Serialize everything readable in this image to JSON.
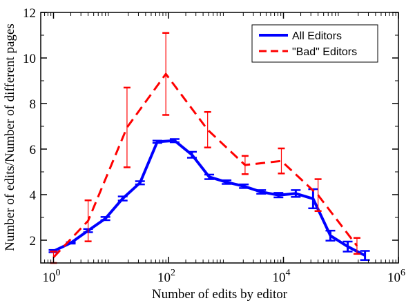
{
  "chart_data": {
    "type": "line",
    "xlabel": "Number of edits by editor",
    "ylabel": "Number of edits/Number of different pages",
    "x_scale": "log",
    "xlim": [
      0.6,
      1000000
    ],
    "ylim": [
      1,
      12
    ],
    "x_ticks": [
      {
        "value": 1,
        "base": "10",
        "exp": "0"
      },
      {
        "value": 100,
        "base": "10",
        "exp": "2"
      },
      {
        "value": 10000,
        "base": "10",
        "exp": "4"
      },
      {
        "value": 1000000,
        "base": "10",
        "exp": "6"
      }
    ],
    "y_ticks": [
      {
        "value": 2,
        "label": "2"
      },
      {
        "value": 4,
        "label": "4"
      },
      {
        "value": 6,
        "label": "6"
      },
      {
        "value": 8,
        "label": "8"
      },
      {
        "value": 10,
        "label": "10"
      },
      {
        "value": 12,
        "label": "12"
      }
    ],
    "grid": false,
    "legend_position": "top-right",
    "series": [
      {
        "name": "All Editors",
        "color": "#0000ff",
        "line_style": "solid",
        "points": [
          {
            "x": 1,
            "y": 1.52,
            "err": 0.05
          },
          {
            "x": 2,
            "y": 1.88,
            "err": 0.03
          },
          {
            "x": 4,
            "y": 2.42,
            "err": 0.07
          },
          {
            "x": 8,
            "y": 2.95,
            "err": 0.07
          },
          {
            "x": 16,
            "y": 3.83,
            "err": 0.09
          },
          {
            "x": 32,
            "y": 4.52,
            "err": 0.07
          },
          {
            "x": 64,
            "y": 6.32,
            "err": 0.05
          },
          {
            "x": 128,
            "y": 6.37,
            "err": 0.07
          },
          {
            "x": 256,
            "y": 5.75,
            "err": 0.13
          },
          {
            "x": 512,
            "y": 4.78,
            "err": 0.1
          },
          {
            "x": 1024,
            "y": 4.55,
            "err": 0.08
          },
          {
            "x": 2048,
            "y": 4.37,
            "err": 0.08
          },
          {
            "x": 4096,
            "y": 4.12,
            "err": 0.08
          },
          {
            "x": 8192,
            "y": 3.98,
            "err": 0.1
          },
          {
            "x": 16384,
            "y": 4.05,
            "err": 0.15
          },
          {
            "x": 32768,
            "y": 3.82,
            "err": 0.42
          },
          {
            "x": 65536,
            "y": 2.2,
            "err": 0.22
          },
          {
            "x": 131072,
            "y": 1.72,
            "err": 0.22
          },
          {
            "x": 262144,
            "y": 1.33,
            "err": 0.2
          }
        ]
      },
      {
        "name": "\"Bad\" Editors",
        "color": "#ff0000",
        "line_style": "dashed",
        "points": [
          {
            "x": 1,
            "y": 1.25,
            "err": 0.25
          },
          {
            "x": 4,
            "y": 2.85,
            "err": 0.9
          },
          {
            "x": 19,
            "y": 6.95,
            "err": 1.75
          },
          {
            "x": 90,
            "y": 9.3,
            "err": 1.8
          },
          {
            "x": 480,
            "y": 6.85,
            "err": 0.78
          },
          {
            "x": 2150,
            "y": 5.3,
            "err": 0.4
          },
          {
            "x": 9200,
            "y": 5.48,
            "err": 0.55
          },
          {
            "x": 40000,
            "y": 3.98,
            "err": 0.7
          },
          {
            "x": 190000,
            "y": 1.75,
            "err": 0.35
          }
        ]
      }
    ]
  }
}
